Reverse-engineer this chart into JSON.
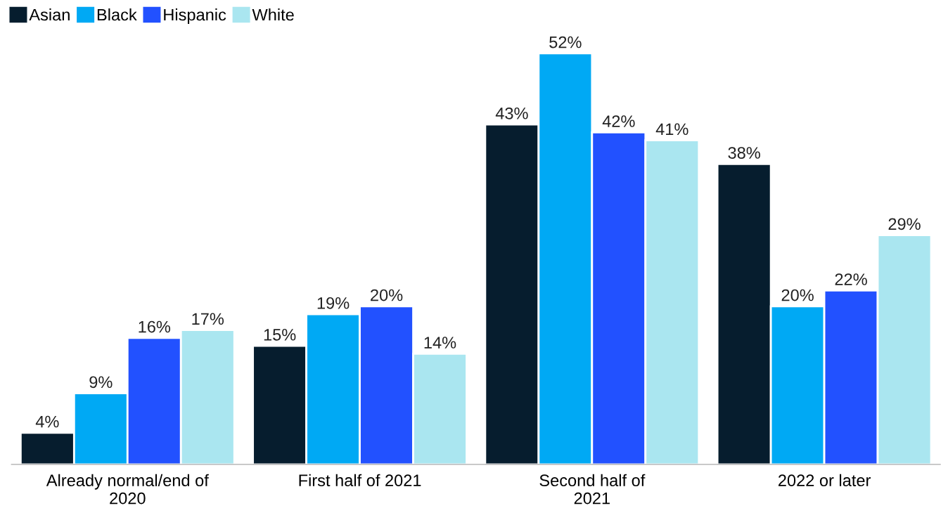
{
  "chart_data": {
    "type": "bar",
    "categories": [
      "Already normal/end of\n2020",
      "First half of 2021",
      "Second half of\n2021",
      "2022 or later"
    ],
    "series": [
      {
        "name": "Asian",
        "color": "#061d2e",
        "values": [
          4,
          15,
          43,
          38
        ],
        "value_labels": [
          "4%",
          "15%",
          "43%",
          "38%"
        ]
      },
      {
        "name": "Black",
        "color": "#00a9f4",
        "values": [
          9,
          19,
          52,
          20
        ],
        "value_labels": [
          "9%",
          "19%",
          "52%",
          "20%"
        ]
      },
      {
        "name": "Hispanic",
        "color": "#2251ff",
        "values": [
          16,
          20,
          42,
          22
        ],
        "value_labels": [
          "16%",
          "20%",
          "42%",
          "22%"
        ]
      },
      {
        "name": "White",
        "color": "#aae6f0",
        "values": [
          17,
          14,
          41,
          29
        ],
        "value_labels": [
          "17%",
          "14%",
          "41%",
          "29%"
        ]
      }
    ],
    "legend": "top left"
  }
}
